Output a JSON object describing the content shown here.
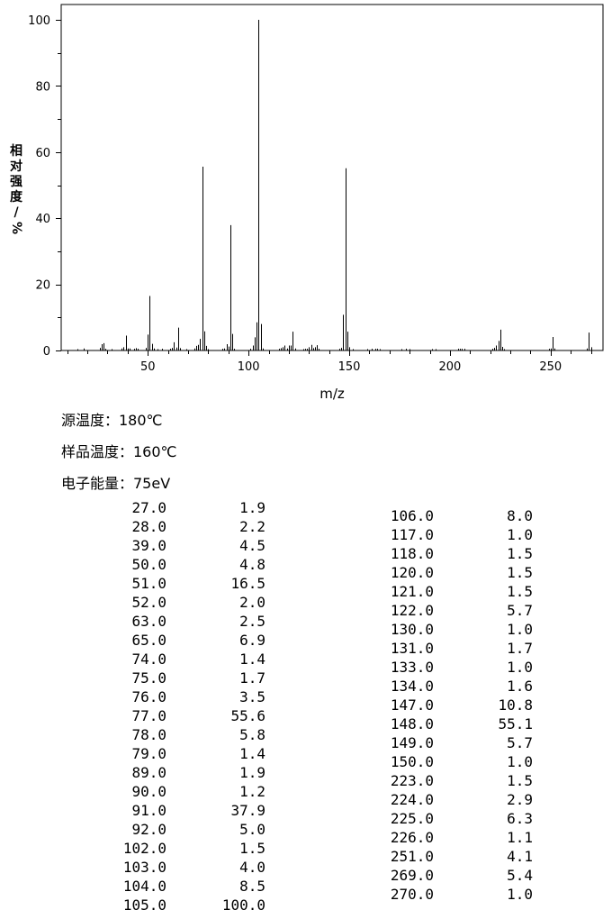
{
  "chart_data": {
    "type": "bar",
    "xlabel": "m/z",
    "ylabel_chars": [
      "相",
      "对",
      "强",
      "度",
      "/",
      "%"
    ],
    "xlim": [
      7,
      276
    ],
    "ylim": [
      0,
      100
    ],
    "x_ticks": [
      50,
      100,
      150,
      200,
      250
    ],
    "y_ticks": [
      0,
      20,
      40,
      60,
      80,
      100
    ],
    "grid": false,
    "peaks": [
      [
        15,
        0.4
      ],
      [
        18,
        0.6
      ],
      [
        26,
        0.8
      ],
      [
        27,
        1.9
      ],
      [
        28,
        2.2
      ],
      [
        29,
        0.5
      ],
      [
        32,
        0.4
      ],
      [
        37,
        0.6
      ],
      [
        38,
        1.0
      ],
      [
        39,
        4.5
      ],
      [
        40,
        0.6
      ],
      [
        41,
        0.6
      ],
      [
        43,
        0.5
      ],
      [
        44,
        0.7
      ],
      [
        45,
        0.5
      ],
      [
        49,
        0.8
      ],
      [
        50,
        4.8
      ],
      [
        51,
        16.5
      ],
      [
        52,
        2.0
      ],
      [
        53,
        0.6
      ],
      [
        55,
        0.4
      ],
      [
        57,
        0.5
      ],
      [
        61,
        0.5
      ],
      [
        62,
        0.8
      ],
      [
        63,
        2.5
      ],
      [
        64,
        0.9
      ],
      [
        65,
        6.9
      ],
      [
        66,
        0.7
      ],
      [
        69,
        0.4
      ],
      [
        73,
        0.6
      ],
      [
        74,
        1.4
      ],
      [
        75,
        1.7
      ],
      [
        76,
        3.5
      ],
      [
        77,
        55.6
      ],
      [
        78,
        5.8
      ],
      [
        79,
        1.4
      ],
      [
        80,
        0.4
      ],
      [
        87,
        0.5
      ],
      [
        88,
        0.6
      ],
      [
        89,
        1.9
      ],
      [
        90,
        1.2
      ],
      [
        91,
        37.9
      ],
      [
        92,
        5.0
      ],
      [
        93,
        0.5
      ],
      [
        101,
        0.5
      ],
      [
        102,
        1.5
      ],
      [
        103,
        4.0
      ],
      [
        104,
        8.5
      ],
      [
        105,
        100.0
      ],
      [
        106,
        8.0
      ],
      [
        107,
        0.6
      ],
      [
        115,
        0.5
      ],
      [
        116,
        0.7
      ],
      [
        117,
        1.0
      ],
      [
        118,
        1.5
      ],
      [
        119,
        0.6
      ],
      [
        120,
        1.5
      ],
      [
        121,
        1.5
      ],
      [
        122,
        5.7
      ],
      [
        123,
        0.6
      ],
      [
        127,
        0.4
      ],
      [
        128,
        0.5
      ],
      [
        129,
        0.5
      ],
      [
        130,
        1.0
      ],
      [
        131,
        1.7
      ],
      [
        132,
        0.7
      ],
      [
        133,
        1.0
      ],
      [
        134,
        1.6
      ],
      [
        135,
        0.5
      ],
      [
        145,
        0.5
      ],
      [
        146,
        0.8
      ],
      [
        147,
        10.8
      ],
      [
        148,
        55.1
      ],
      [
        149,
        5.7
      ],
      [
        150,
        1.0
      ],
      [
        152,
        0.4
      ],
      [
        159,
        0.4
      ],
      [
        161,
        0.5
      ],
      [
        163,
        0.5
      ],
      [
        164,
        0.5
      ],
      [
        165,
        0.4
      ],
      [
        176,
        0.4
      ],
      [
        178,
        0.5
      ],
      [
        180,
        0.4
      ],
      [
        191,
        0.4
      ],
      [
        193,
        0.4
      ],
      [
        204,
        0.5
      ],
      [
        205,
        0.5
      ],
      [
        206,
        0.5
      ],
      [
        207,
        0.5
      ],
      [
        221,
        0.5
      ],
      [
        222,
        0.8
      ],
      [
        223,
        1.5
      ],
      [
        224,
        2.9
      ],
      [
        225,
        6.3
      ],
      [
        226,
        1.1
      ],
      [
        227,
        0.4
      ],
      [
        249,
        0.5
      ],
      [
        250,
        0.6
      ],
      [
        251,
        4.1
      ],
      [
        252,
        0.6
      ],
      [
        268,
        0.6
      ],
      [
        269,
        5.4
      ],
      [
        270,
        1.0
      ]
    ]
  },
  "conditions": {
    "source_temp": "源温度：180℃",
    "sample_temp": "样品温度：160℃",
    "electron_energy": "电子能量：75eV"
  },
  "table_left": [
    [
      "27.0",
      "1.9"
    ],
    [
      "28.0",
      "2.2"
    ],
    [
      "39.0",
      "4.5"
    ],
    [
      "50.0",
      "4.8"
    ],
    [
      "51.0",
      "16.5"
    ],
    [
      "52.0",
      "2.0"
    ],
    [
      "63.0",
      "2.5"
    ],
    [
      "65.0",
      "6.9"
    ],
    [
      "74.0",
      "1.4"
    ],
    [
      "75.0",
      "1.7"
    ],
    [
      "76.0",
      "3.5"
    ],
    [
      "77.0",
      "55.6"
    ],
    [
      "78.0",
      "5.8"
    ],
    [
      "79.0",
      "1.4"
    ],
    [
      "89.0",
      "1.9"
    ],
    [
      "90.0",
      "1.2"
    ],
    [
      "91.0",
      "37.9"
    ],
    [
      "92.0",
      "5.0"
    ],
    [
      "102.0",
      "1.5"
    ],
    [
      "103.0",
      "4.0"
    ],
    [
      "104.0",
      "8.5"
    ],
    [
      "105.0",
      "100.0"
    ]
  ],
  "table_right": [
    [
      "106.0",
      "8.0"
    ],
    [
      "117.0",
      "1.0"
    ],
    [
      "118.0",
      "1.5"
    ],
    [
      "120.0",
      "1.5"
    ],
    [
      "121.0",
      "1.5"
    ],
    [
      "122.0",
      "5.7"
    ],
    [
      "130.0",
      "1.0"
    ],
    [
      "131.0",
      "1.7"
    ],
    [
      "133.0",
      "1.0"
    ],
    [
      "134.0",
      "1.6"
    ],
    [
      "147.0",
      "10.8"
    ],
    [
      "148.0",
      "55.1"
    ],
    [
      "149.0",
      "5.7"
    ],
    [
      "150.0",
      "1.0"
    ],
    [
      "223.0",
      "1.5"
    ],
    [
      "224.0",
      "2.9"
    ],
    [
      "225.0",
      "6.3"
    ],
    [
      "226.0",
      "1.1"
    ],
    [
      "251.0",
      "4.1"
    ],
    [
      "269.0",
      "5.4"
    ],
    [
      "270.0",
      "1.0"
    ]
  ]
}
